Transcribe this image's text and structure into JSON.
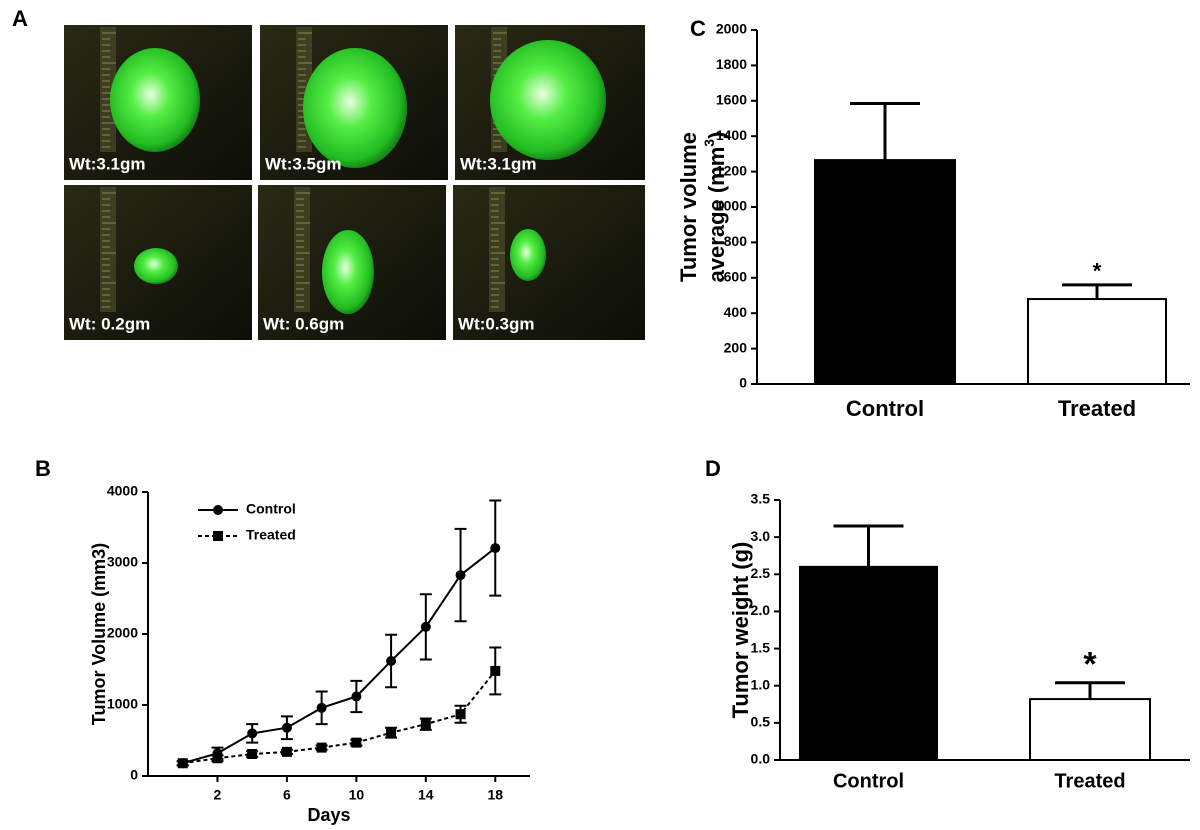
{
  "photos": {
    "label": "A",
    "captions": [
      "Wt:3.1gm",
      "Wt:3.5gm",
      "Wt:3.1gm",
      "Wt: 0.2gm",
      "Wt: 0.6gm",
      "Wt:0.3gm"
    ]
  },
  "chart_data": [
    {
      "type": "line",
      "label": "B",
      "xlabel": "Days",
      "ylabel": "Tumor Volume (mm3)",
      "x": [
        0,
        2,
        4,
        6,
        8,
        10,
        12,
        14,
        16,
        18
      ],
      "xlim": [
        -2,
        20
      ],
      "xticks": [
        2,
        6,
        10,
        14,
        18
      ],
      "ylim": [
        0,
        4000
      ],
      "yticks": [
        0,
        1000,
        2000,
        3000,
        4000
      ],
      "legend": "upper left",
      "series": [
        {
          "name": "Control",
          "color": "#000000",
          "marker": "circle",
          "linestyle": "solid",
          "values": [
            180,
            320,
            600,
            680,
            960,
            1120,
            1620,
            2100,
            2830,
            3210
          ],
          "errors": [
            30,
            80,
            130,
            160,
            230,
            220,
            370,
            460,
            650,
            670
          ]
        },
        {
          "name": "Treated",
          "color": "#000000",
          "marker": "square",
          "linestyle": "dashed",
          "values": [
            180,
            250,
            310,
            340,
            400,
            470,
            610,
            730,
            870,
            1480
          ],
          "errors": [
            30,
            40,
            40,
            30,
            30,
            40,
            70,
            80,
            120,
            330
          ]
        }
      ]
    },
    {
      "type": "bar",
      "label": "C",
      "ylabel": [
        "Tumor volume",
        "average (mm",
        "3",
        ")"
      ],
      "categories": [
        "Control",
        "Treated"
      ],
      "values": [
        1265,
        480
      ],
      "errors": [
        320,
        80
      ],
      "colors": [
        "#000000",
        "#ffffff"
      ],
      "ylim": [
        0,
        2000
      ],
      "yticks": [
        0,
        200,
        400,
        600,
        800,
        1000,
        1200,
        1400,
        1600,
        1800,
        2000
      ],
      "annotations": [
        {
          "text": "*",
          "x": "Treated"
        }
      ]
    },
    {
      "type": "bar",
      "label": "D",
      "ylabel": [
        "Tumor weight (g)"
      ],
      "categories": [
        "Control",
        "Treated"
      ],
      "values": [
        2.6,
        0.82
      ],
      "errors": [
        0.55,
        0.22
      ],
      "colors": [
        "#000000",
        "#ffffff"
      ],
      "ylim": [
        0,
        3.5
      ],
      "yticks": [
        {
          "value": 0,
          "label": "0.0"
        },
        {
          "value": 0.5,
          "label": "0.5"
        },
        {
          "value": 1,
          "label": "1.0"
        },
        {
          "value": 1.5,
          "label": "1.5"
        },
        {
          "value": 2,
          "label": "2.0"
        },
        {
          "value": 2.5,
          "label": "2.5"
        },
        {
          "value": 3,
          "label": "3.0"
        },
        {
          "value": 3.5,
          "label": "3.5"
        }
      ],
      "annotations": [
        {
          "text": "*",
          "x": "Treated"
        }
      ]
    }
  ]
}
